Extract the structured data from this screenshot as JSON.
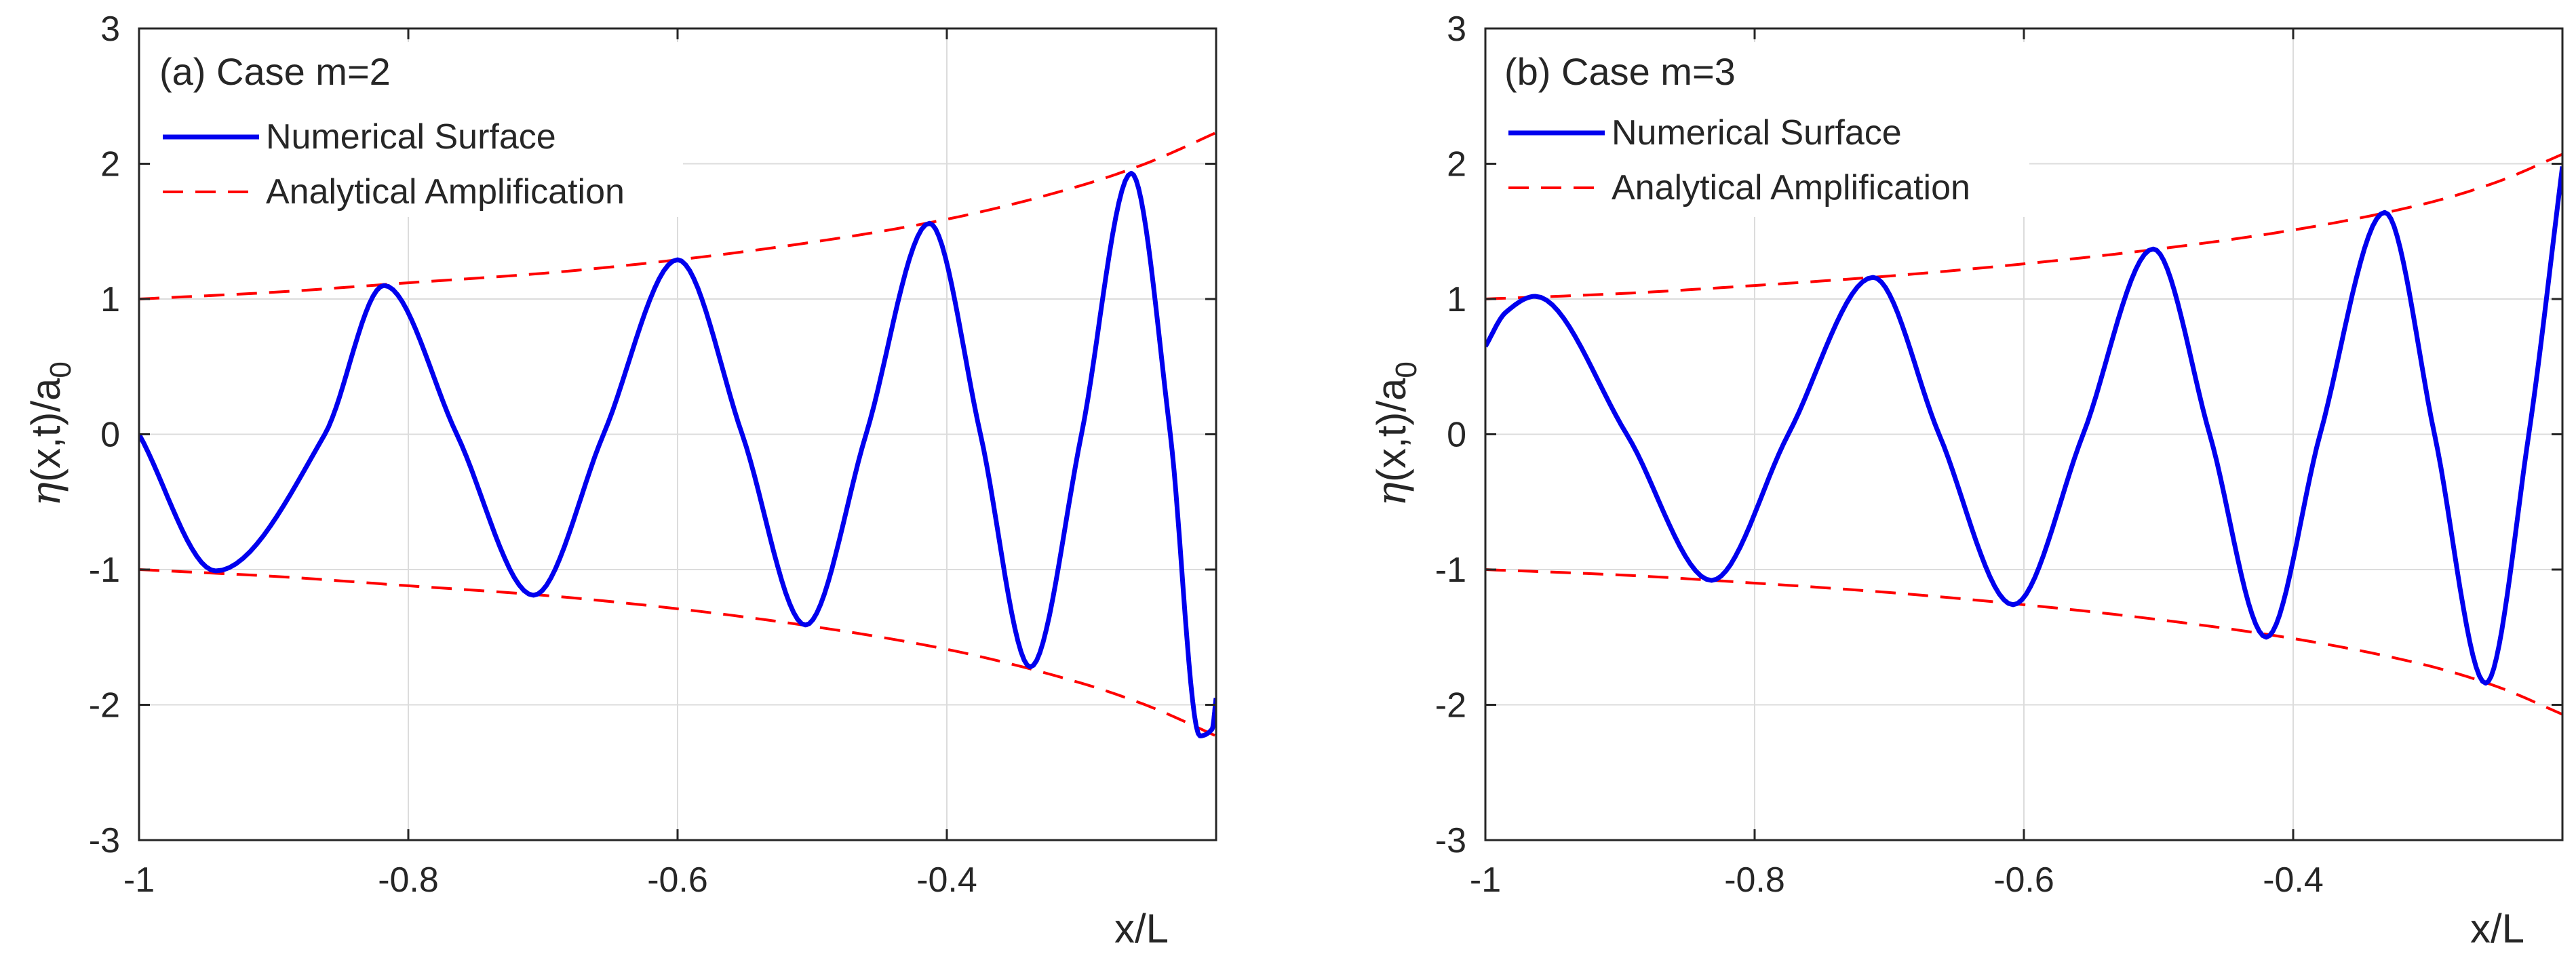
{
  "chart_data": [
    {
      "type": "line",
      "title": "(a) Case m=2",
      "xlabel": "x/L",
      "ylabel_symbol": "η",
      "ylabel_main": "(x,t)/a",
      "ylabel_sub": "0",
      "xlim": [
        -1,
        -0.2
      ],
      "ylim": [
        -3,
        3
      ],
      "xticks": [
        -1,
        -0.8,
        -0.6,
        -0.4
      ],
      "xtick_labels": [
        "-1",
        "-0.8",
        "-0.6",
        "-0.4"
      ],
      "yticks": [
        -3,
        -2,
        -1,
        0,
        1,
        2,
        3
      ],
      "ytick_labels": [
        "-3",
        "-2",
        "-1",
        "0",
        "1",
        "2",
        "3"
      ],
      "grid": true,
      "legend_position": "top-left",
      "series": [
        {
          "name": "Numerical Surface",
          "style": "solid",
          "color": "#0000ee",
          "x": [
            -1,
            -0.943,
            -0.862,
            -0.818,
            -0.764,
            -0.707,
            -0.655,
            -0.6,
            -0.552,
            -0.505,
            -0.46,
            -0.413,
            -0.375,
            -0.338,
            -0.3,
            -0.263,
            -0.234,
            -0.212,
            -0.203,
            -0.2
          ],
          "y": [
            0,
            -1.01,
            0.0,
            1.1,
            0.0,
            -1.19,
            0.0,
            1.29,
            0.0,
            -1.41,
            0.0,
            1.56,
            0.0,
            -1.72,
            0.0,
            1.93,
            0.0,
            -2.23,
            -2.18,
            -1.95
          ]
        },
        {
          "name": "Analytical Amplification",
          "style": "dashed",
          "color": "#ff0000",
          "x": [
            -1,
            -0.9,
            -0.8,
            -0.7,
            -0.6,
            -0.5,
            -0.4,
            -0.3,
            -0.25,
            -0.2
          ],
          "y": [
            1.0,
            1.05,
            1.12,
            1.19,
            1.29,
            1.42,
            1.59,
            1.84,
            2.01,
            2.23
          ],
          "y_neg": [
            -1.0,
            -1.05,
            -1.12,
            -1.19,
            -1.29,
            -1.42,
            -1.59,
            -1.84,
            -2.01,
            -2.23
          ]
        }
      ]
    },
    {
      "type": "line",
      "title": "(b) Case m=3",
      "xlabel": "x/L",
      "ylabel_symbol": "η",
      "ylabel_main": "(x,t)/a",
      "ylabel_sub": "0",
      "xlim": [
        -1,
        -0.2
      ],
      "ylim": [
        -3,
        3
      ],
      "xticks": [
        -1,
        -0.8,
        -0.6,
        -0.4
      ],
      "xtick_labels": [
        "-1",
        "-0.8",
        "-0.6",
        "-0.4"
      ],
      "yticks": [
        -3,
        -2,
        -1,
        0,
        1,
        2,
        3
      ],
      "ytick_labels": [
        "-3",
        "-2",
        "-1",
        "0",
        "1",
        "2",
        "3"
      ],
      "grid": true,
      "legend_position": "top-left",
      "series": [
        {
          "name": "Numerical Surface",
          "style": "solid",
          "color": "#0000ee",
          "x": [
            -1,
            -0.985,
            -0.963,
            -0.895,
            -0.832,
            -0.775,
            -0.712,
            -0.663,
            -0.608,
            -0.556,
            -0.504,
            -0.462,
            -0.42,
            -0.38,
            -0.332,
            -0.295,
            -0.257,
            -0.225,
            -0.2
          ],
          "y": [
            0.65,
            0.9,
            1.02,
            0.0,
            -1.08,
            0.0,
            1.16,
            0.0,
            -1.26,
            0.0,
            1.37,
            0.0,
            -1.5,
            0.0,
            1.64,
            0.0,
            -1.84,
            0.0,
            1.98
          ]
        },
        {
          "name": "Analytical Amplification",
          "style": "dashed",
          "color": "#ff0000",
          "x": [
            -1,
            -0.9,
            -0.8,
            -0.7,
            -0.6,
            -0.5,
            -0.4,
            -0.3,
            -0.25,
            -0.2
          ],
          "y": [
            1.0,
            1.04,
            1.1,
            1.17,
            1.26,
            1.37,
            1.51,
            1.71,
            1.86,
            2.07
          ],
          "y_neg": [
            -1.0,
            -1.04,
            -1.1,
            -1.17,
            -1.26,
            -1.37,
            -1.51,
            -1.71,
            -1.86,
            -2.07
          ]
        }
      ]
    }
  ]
}
